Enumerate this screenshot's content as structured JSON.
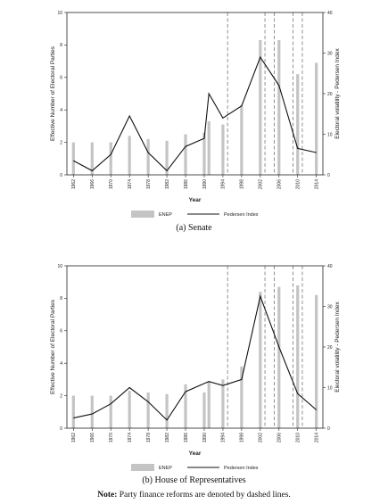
{
  "chart_data": [
    {
      "type": "bar+line",
      "caption": "(a) Senate",
      "xlabel": "Year",
      "ylabel_left": "Effective Number of Electoral Parties",
      "ylabel_right": "Electoral volatility - Pedersen Index",
      "ylim_left": [
        0,
        10
      ],
      "ylim_right": [
        0,
        40
      ],
      "yticks_left": [
        0,
        2,
        4,
        6,
        8,
        10
      ],
      "yticks_right": [
        0,
        10,
        20,
        30,
        40
      ],
      "x_ticks": [
        "1962",
        "1966",
        "1970",
        "1974",
        "1978",
        "1982",
        "1986",
        "1990",
        "1994",
        "1998",
        "2002",
        "2006",
        "2010",
        "2014"
      ],
      "bars_name": "ENEP",
      "line_name": "Pedersen Index",
      "enep": [
        {
          "x": 1962,
          "y": 2.0
        },
        {
          "x": 1966,
          "y": 2.0
        },
        {
          "x": 1970,
          "y": 2.0
        },
        {
          "x": 1974,
          "y": 2.4
        },
        {
          "x": 1978,
          "y": 2.2
        },
        {
          "x": 1982,
          "y": 2.1
        },
        {
          "x": 1986,
          "y": 2.5
        },
        {
          "x": 1990,
          "y": 2.6
        },
        {
          "x": 1991,
          "y": 3.3
        },
        {
          "x": 1994,
          "y": 3.1
        },
        {
          "x": 1998,
          "y": 4.3
        },
        {
          "x": 2002,
          "y": 8.3
        },
        {
          "x": 2006,
          "y": 8.3
        },
        {
          "x": 2010,
          "y": 6.2
        },
        {
          "x": 2014,
          "y": 6.9
        }
      ],
      "pedersen": [
        {
          "x": 1962,
          "y": 3.5
        },
        {
          "x": 1966,
          "y": 1.0
        },
        {
          "x": 1970,
          "y": 5.0
        },
        {
          "x": 1974,
          "y": 14.5
        },
        {
          "x": 1978,
          "y": 5.5
        },
        {
          "x": 1982,
          "y": 1.0
        },
        {
          "x": 1986,
          "y": 7.0
        },
        {
          "x": 1990,
          "y": 9.0
        },
        {
          "x": 1991,
          "y": 20.0
        },
        {
          "x": 1994,
          "y": 14.0
        },
        {
          "x": 1998,
          "y": 17.0
        },
        {
          "x": 2002,
          "y": 29.0
        },
        {
          "x": 2006,
          "y": 22.0
        },
        {
          "x": 2010,
          "y": 6.5
        },
        {
          "x": 2014,
          "y": 5.5
        }
      ],
      "reforms": [
        1995,
        2003,
        2005,
        2009,
        2011
      ]
    },
    {
      "type": "bar+line",
      "caption": "(b) House of Representatives",
      "xlabel": "Year",
      "ylabel_left": "Effective Number of Electoral Parties",
      "ylabel_right": "Electoral volatility - Pedersen Index",
      "ylim_left": [
        0,
        10
      ],
      "ylim_right": [
        0,
        40
      ],
      "yticks_left": [
        0,
        2,
        4,
        6,
        8,
        10
      ],
      "yticks_right": [
        0,
        10,
        20,
        30,
        40
      ],
      "x_ticks": [
        "1962",
        "1966",
        "1970",
        "1974",
        "1978",
        "1982",
        "1986",
        "1990",
        "1994",
        "1998",
        "2002",
        "2006",
        "2010",
        "2014"
      ],
      "bars_name": "ENEP",
      "line_name": "Pedersen Index",
      "enep": [
        {
          "x": 1962,
          "y": 2.0
        },
        {
          "x": 1966,
          "y": 2.0
        },
        {
          "x": 1970,
          "y": 2.0
        },
        {
          "x": 1974,
          "y": 2.3
        },
        {
          "x": 1978,
          "y": 2.2
        },
        {
          "x": 1982,
          "y": 2.1
        },
        {
          "x": 1986,
          "y": 2.7
        },
        {
          "x": 1990,
          "y": 2.2
        },
        {
          "x": 1991,
          "y": 2.9
        },
        {
          "x": 1994,
          "y": 3.0
        },
        {
          "x": 1998,
          "y": 3.8
        },
        {
          "x": 2002,
          "y": 8.4
        },
        {
          "x": 2006,
          "y": 8.7
        },
        {
          "x": 2010,
          "y": 8.8
        },
        {
          "x": 2014,
          "y": 8.2
        }
      ],
      "pedersen": [
        {
          "x": 1962,
          "y": 2.5
        },
        {
          "x": 1966,
          "y": 3.5
        },
        {
          "x": 1970,
          "y": 6.0
        },
        {
          "x": 1974,
          "y": 10.0
        },
        {
          "x": 1978,
          "y": 6.5
        },
        {
          "x": 1982,
          "y": 2.0
        },
        {
          "x": 1986,
          "y": 9.0
        },
        {
          "x": 1990,
          "y": 11.0
        },
        {
          "x": 1991,
          "y": 11.5
        },
        {
          "x": 1994,
          "y": 10.5
        },
        {
          "x": 1998,
          "y": 12.0
        },
        {
          "x": 2002,
          "y": 32.5
        },
        {
          "x": 2006,
          "y": 20.0
        },
        {
          "x": 2010,
          "y": 8.5
        },
        {
          "x": 2014,
          "y": 4.5
        }
      ],
      "reforms": [
        1995,
        2003,
        2005,
        2009,
        2011
      ]
    }
  ],
  "note": {
    "bold": "Note:",
    "text": " Party finance reforms are denoted by dashed lines."
  }
}
